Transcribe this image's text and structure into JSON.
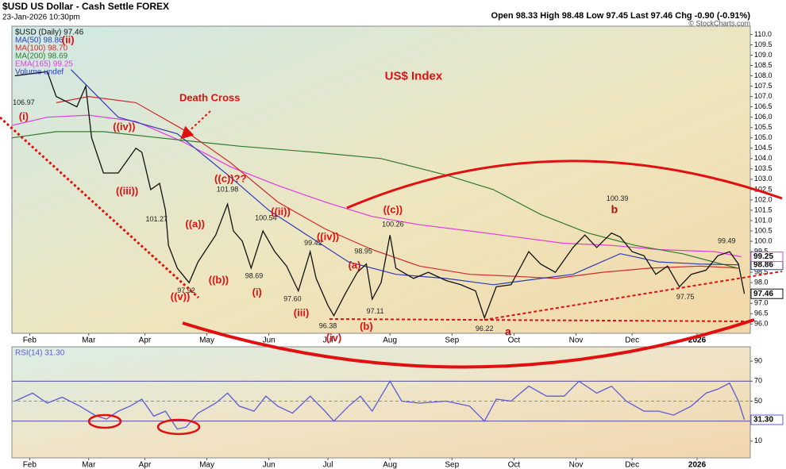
{
  "header": {
    "symbol": "$USD US Dollar - Cash Settle FOREX",
    "date": "23-Jan-2026 10:30pm",
    "quote": "Open 98.33 High 98.48 Low 97.45 Last 97.46 Chg -0.90 (-0.91%)",
    "credit": "© StockCharts.com"
  },
  "chart_data": [
    {
      "type": "line",
      "xlim": [
        0,
        250
      ],
      "ylim": [
        95.55,
        110.4
      ],
      "xticks": [
        {
          "value": 6,
          "label": "Feb"
        },
        {
          "value": 26,
          "label": "Mar"
        },
        {
          "value": 45,
          "label": "Apr"
        },
        {
          "value": 66,
          "label": "May"
        },
        {
          "value": 87,
          "label": "Jun"
        },
        {
          "value": 107,
          "label": "Jul"
        },
        {
          "value": 128,
          "label": "Aug"
        },
        {
          "value": 149,
          "label": "Sep"
        },
        {
          "value": 170,
          "label": "Oct"
        },
        {
          "value": 191,
          "label": "Nov"
        },
        {
          "value": 210,
          "label": "Dec"
        },
        {
          "value": 232,
          "label": "2026"
        }
      ],
      "yticks": [
        {
          "value": 96,
          "label": "96.0"
        },
        96.5,
        {
          "value": 97,
          "label": "97.0"
        },
        97.5,
        {
          "value": 98,
          "label": "98.0"
        },
        98.5,
        {
          "value": 99,
          "label": "99.0"
        },
        99.5,
        {
          "value": 100,
          "label": "100.0"
        },
        100.5,
        {
          "value": 101,
          "label": "101.0"
        },
        101.5,
        {
          "value": 102,
          "label": "102.0"
        },
        102.5,
        {
          "value": 103,
          "label": "103.0"
        },
        103.5,
        {
          "value": 104,
          "label": "104.0"
        },
        104.5,
        {
          "value": 105,
          "label": "105.0"
        },
        105.5,
        {
          "value": 106,
          "label": "106.0"
        },
        106.5,
        {
          "value": 107,
          "label": "107.0"
        },
        107.5,
        {
          "value": 108,
          "label": "108.0"
        },
        108.5,
        {
          "value": 109,
          "label": "109.0"
        },
        109.5,
        {
          "value": 110,
          "label": "110.0"
        }
      ],
      "legend_extra": "Volume undef",
      "series": [
        {
          "name": "$USD (Daily) 97.46",
          "color": "#111111",
          "end_label": true,
          "x": [
            1,
            12,
            15,
            22,
            25,
            27,
            31,
            36,
            42,
            44,
            47,
            50,
            52,
            53,
            56,
            60,
            63,
            69,
            73,
            75,
            78,
            81,
            85,
            89,
            93,
            97,
            101,
            103,
            107,
            109,
            113,
            117,
            120,
            122,
            125,
            128,
            130,
            136,
            141,
            147,
            152,
            157,
            160,
            164,
            169,
            175,
            179,
            184,
            190,
            194,
            198,
            203,
            206,
            210,
            214,
            218,
            222,
            226,
            230,
            235,
            239,
            243,
            246,
            248
          ],
          "values": [
            108.0,
            108.2,
            107.0,
            106.5,
            107.5,
            105.0,
            103.3,
            103.3,
            104.5,
            104.3,
            102.5,
            102.8,
            101.5,
            99.8,
            98.7,
            98.0,
            99.0,
            100.3,
            101.8,
            100.5,
            100.0,
            98.7,
            100.5,
            99.5,
            98.8,
            97.6,
            99.5,
            98.2,
            96.9,
            96.4,
            97.5,
            98.5,
            98.9,
            97.2,
            98.0,
            100.3,
            98.7,
            98.2,
            98.5,
            98.1,
            97.9,
            97.6,
            96.3,
            97.8,
            97.9,
            99.5,
            98.9,
            98.5,
            99.7,
            100.3,
            99.7,
            100.4,
            100.2,
            99.5,
            99.3,
            98.4,
            98.8,
            97.8,
            98.4,
            98.6,
            99.3,
            99.5,
            98.9,
            97.46
          ]
        },
        {
          "name": "MA(50) 98.86",
          "color": "#2e3cb8",
          "end_label": true,
          "x": [
            20,
            36,
            56,
            74,
            87,
            101,
            114,
            130,
            147,
            163,
            179,
            190,
            206,
            219,
            233,
            246
          ],
          "values": [
            108.3,
            106.0,
            105.2,
            103.1,
            101.5,
            100.2,
            99.0,
            98.4,
            98.2,
            97.9,
            98.2,
            98.4,
            99.4,
            99.0,
            98.9,
            98.86
          ]
        },
        {
          "name": "MA(100) 98.70",
          "color": "#d02a2a",
          "x": [
            15,
            26,
            42,
            58,
            74,
            90,
            106,
            122,
            138,
            155,
            171,
            184,
            200,
            216,
            233,
            246
          ],
          "values": [
            106.7,
            107.0,
            106.7,
            105.4,
            103.8,
            101.9,
            100.6,
            99.6,
            98.8,
            98.4,
            98.3,
            98.2,
            98.5,
            98.7,
            98.8,
            98.7
          ]
        },
        {
          "name": "MA(200) 98.69",
          "color": "#2f7a2f",
          "x": [
            0,
            15,
            31,
            50,
            77,
            103,
            125,
            147,
            163,
            179,
            195,
            211,
            227,
            246
          ],
          "values": [
            105.0,
            105.3,
            105.3,
            105.0,
            104.6,
            104.3,
            104.0,
            103.2,
            102.5,
            101.3,
            100.4,
            99.8,
            99.4,
            98.69
          ]
        },
        {
          "name": "EMA(165) 99.25",
          "color": "#e03ce0",
          "end_label": true,
          "x": [
            0,
            12,
            26,
            42,
            58,
            74,
            90,
            106,
            122,
            138,
            155,
            171,
            187,
            203,
            219,
            238,
            247
          ],
          "values": [
            105.6,
            106.0,
            106.1,
            105.8,
            104.8,
            103.6,
            102.7,
            101.9,
            101.2,
            100.8,
            100.5,
            100.2,
            99.9,
            99.8,
            99.6,
            99.5,
            99.25
          ]
        }
      ],
      "annotations": [
        {
          "text": "US$ Index",
          "x": 136,
          "y": 107.96,
          "color": "#e01010",
          "size": 15
        },
        {
          "text": "Death Cross",
          "x": 67,
          "y": 106.9,
          "color": "#e01010",
          "size": 13
        },
        {
          "text": "((iv))",
          "x": 38,
          "y": 105.5,
          "color": "#e01010",
          "size": 13
        },
        {
          "text": "((iii))",
          "x": 39,
          "y": 102.4,
          "color": "#e01010",
          "size": 13
        },
        {
          "text": "(i)",
          "x": 4,
          "y": 106.0,
          "color": "#e01010",
          "size": 13
        },
        {
          "text": "(ii)",
          "x": 19,
          "y": 109.7,
          "color": "#e01010",
          "size": 13
        },
        {
          "text": "((a))",
          "x": 62,
          "y": 100.8,
          "color": "#e01010",
          "size": 13
        },
        {
          "text": "((b))",
          "x": 70,
          "y": 98.1,
          "color": "#e01010",
          "size": 13
        },
        {
          "text": "((c))??",
          "x": 74,
          "y": 103.0,
          "color": "#e01010",
          "size": 13
        },
        {
          "text": "((v))",
          "x": 57,
          "y": 97.3,
          "color": "#e01010",
          "size": 13
        },
        {
          "text": "((ii))",
          "x": 91,
          "y": 101.4,
          "color": "#e01010",
          "size": 13
        },
        {
          "text": "(i)",
          "x": 83,
          "y": 97.5,
          "color": "#e01010",
          "size": 13
        },
        {
          "text": "((iv))",
          "x": 107,
          "y": 100.2,
          "color": "#e01010",
          "size": 13
        },
        {
          "text": "(iii)",
          "x": 98,
          "y": 96.5,
          "color": "#e01010",
          "size": 13
        },
        {
          "text": "(iv)",
          "x": 109,
          "y": 95.3,
          "color": "#e01010",
          "size": 13
        },
        {
          "text": "(a)",
          "x": 116,
          "y": 98.8,
          "color": "#e01010",
          "size": 13
        },
        {
          "text": "(b)",
          "x": 120,
          "y": 95.85,
          "color": "#e01010",
          "size": 13
        },
        {
          "text": "((c))",
          "x": 129,
          "y": 101.5,
          "color": "#e01010",
          "size": 13
        },
        {
          "text": "a",
          "x": 168,
          "y": 95.6,
          "color": "#b01010",
          "size": 14
        },
        {
          "text": "b",
          "x": 204,
          "y": 101.5,
          "color": "#b01010",
          "size": 14
        },
        {
          "text": "106.97",
          "x": 4,
          "y": 106.7,
          "color": "#222222",
          "size": 9
        },
        {
          "text": "101.27",
          "x": 49,
          "y": 101.05,
          "color": "#222222",
          "size": 9
        },
        {
          "text": "97.92",
          "x": 59,
          "y": 97.6,
          "color": "#222222",
          "size": 9
        },
        {
          "text": "101.98",
          "x": 73,
          "y": 102.5,
          "color": "#222222",
          "size": 9
        },
        {
          "text": "100.54",
          "x": 86,
          "y": 101.1,
          "color": "#222222",
          "size": 9
        },
        {
          "text": "98.69",
          "x": 82,
          "y": 98.3,
          "color": "#222222",
          "size": 9
        },
        {
          "text": "97.60",
          "x": 95,
          "y": 97.2,
          "color": "#222222",
          "size": 9
        },
        {
          "text": "99.42",
          "x": 102,
          "y": 99.9,
          "color": "#222222",
          "size": 9
        },
        {
          "text": "96.38",
          "x": 107,
          "y": 95.9,
          "color": "#222222",
          "size": 9
        },
        {
          "text": "98.95",
          "x": 119,
          "y": 99.5,
          "color": "#222222",
          "size": 9
        },
        {
          "text": "97.11",
          "x": 123,
          "y": 96.6,
          "color": "#222222",
          "size": 9
        },
        {
          "text": "100.26",
          "x": 129,
          "y": 100.8,
          "color": "#222222",
          "size": 9
        },
        {
          "text": "96.22",
          "x": 160,
          "y": 95.75,
          "color": "#222222",
          "size": 9
        },
        {
          "text": "100.39",
          "x": 205,
          "y": 102.05,
          "color": "#222222",
          "size": 9
        },
        {
          "text": "97.75",
          "x": 228,
          "y": 97.3,
          "color": "#222222",
          "size": 9
        },
        {
          "text": "99.49",
          "x": 242,
          "y": 100.0,
          "color": "#222222",
          "size": 9
        }
      ]
    },
    {
      "type": "line",
      "xlim": [
        0,
        250
      ],
      "ylim": [
        -6.8,
        104.4
      ],
      "xticks": [
        {
          "value": 6,
          "label": "Feb"
        },
        {
          "value": 26,
          "label": "Mar"
        },
        {
          "value": 45,
          "label": "Apr"
        },
        {
          "value": 66,
          "label": "May"
        },
        {
          "value": 87,
          "label": "Jun"
        },
        {
          "value": 107,
          "label": "Jul"
        },
        {
          "value": 128,
          "label": "Aug"
        },
        {
          "value": 149,
          "label": "Sep"
        },
        {
          "value": 170,
          "label": "Oct"
        },
        {
          "value": 191,
          "label": "Nov"
        },
        {
          "value": 210,
          "label": "Dec"
        },
        {
          "value": 232,
          "label": "2026"
        }
      ],
      "yticks": [
        10,
        50,
        70,
        90
      ],
      "levels": [
        30,
        50,
        70
      ],
      "series": [
        {
          "name": "RSI(14) 31.30",
          "color": "#5b5bd6",
          "end_label": "31.30",
          "x": [
            1,
            7,
            12,
            17,
            23,
            28,
            32,
            36,
            40,
            44,
            48,
            52,
            56,
            59,
            63,
            69,
            73,
            77,
            82,
            86,
            90,
            95,
            101,
            106,
            109,
            114,
            118,
            122,
            128,
            132,
            138,
            147,
            155,
            160,
            164,
            169,
            175,
            181,
            187,
            192,
            198,
            203,
            208,
            214,
            219,
            224,
            230,
            235,
            239,
            243,
            246,
            248
          ],
          "values": [
            50,
            58,
            48,
            54,
            45,
            36,
            32,
            40,
            45,
            52,
            35,
            40,
            22,
            24,
            38,
            48,
            58,
            45,
            40,
            55,
            45,
            38,
            55,
            40,
            30,
            45,
            55,
            40,
            70,
            50,
            48,
            50,
            45,
            30,
            52,
            50,
            65,
            55,
            55,
            70,
            58,
            65,
            50,
            40,
            40,
            36,
            45,
            58,
            62,
            68,
            50,
            31.3
          ]
        }
      ]
    }
  ]
}
